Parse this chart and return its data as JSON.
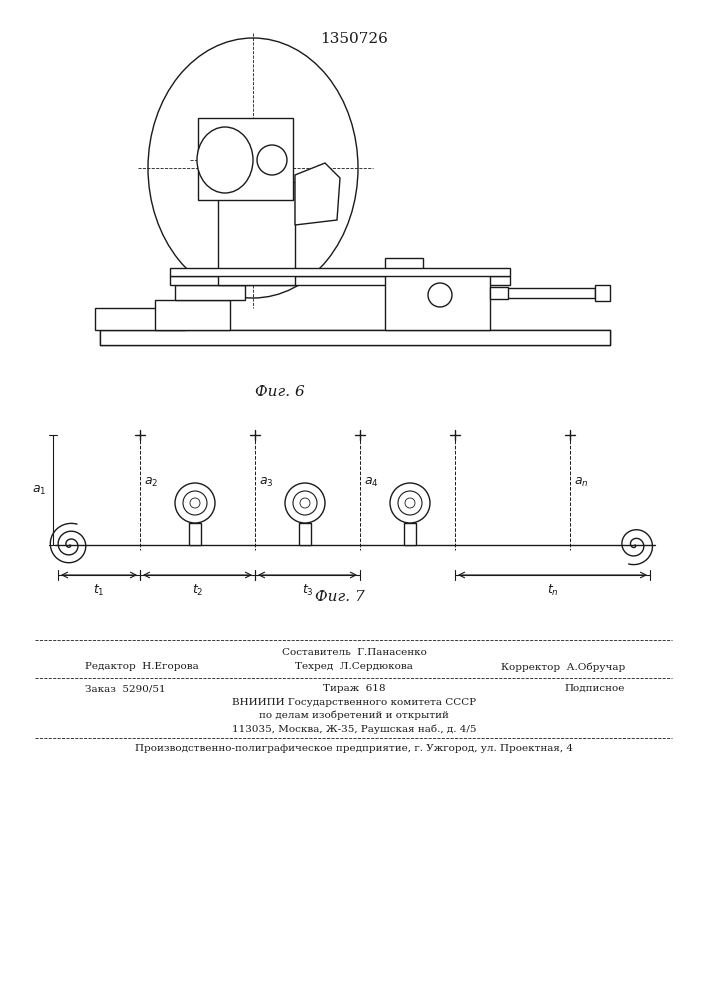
{
  "patent_number": "1350726",
  "fig6_label": "Фиг. 6",
  "fig7_label": "Фиг. 7",
  "bg_color": "#ffffff",
  "line_color": "#1a1a1a",
  "footer_line1": "Составитель  Г.Панасенко",
  "footer_editor": "Редактор  Н.Егорова",
  "footer_techred": "Техред  Л.Сердюкова",
  "footer_corrector": "Корректор  А.Обручар",
  "footer_zakaz": "Заказ  5290/51",
  "footer_tirazh": "Тираж  618",
  "footer_podpisnoe": "Подписное",
  "footer_vniip1": "ВНИИПИ Государственного комитета СССР",
  "footer_vniip2": "по делам изобретений и открытий",
  "footer_vniip3": "113035, Москва, Ж-35, Раушская наб., д. 4/5",
  "footer_last": "Производственно-полиграфическое предприятие, г. Ужгород, ул. Проектная, 4"
}
